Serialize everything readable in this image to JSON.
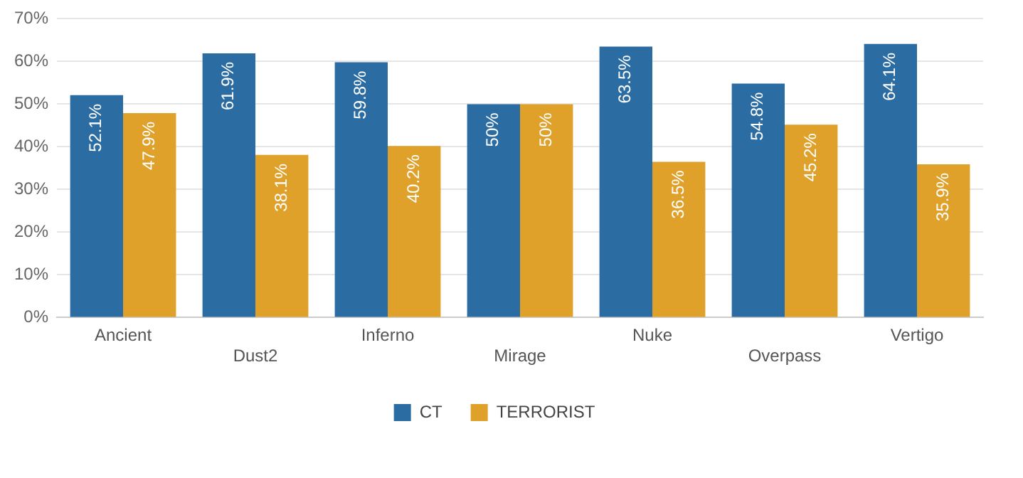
{
  "chart_data": {
    "type": "bar",
    "categories": [
      "Ancient",
      "Dust2",
      "Inferno",
      "Mirage",
      "Nuke",
      "Overpass",
      "Vertigo"
    ],
    "series": [
      {
        "name": "CT",
        "color": "#2b6ca3",
        "values": [
          52.1,
          61.9,
          59.8,
          50,
          63.5,
          54.8,
          64.1
        ],
        "value_labels": [
          "52.1%",
          "61.9%",
          "59.8%",
          "50%",
          "63.5%",
          "54.8%",
          "64.1%"
        ]
      },
      {
        "name": "TERRORIST",
        "color": "#e0a12b",
        "values": [
          47.9,
          38.1,
          40.2,
          50,
          36.5,
          45.2,
          35.9
        ],
        "value_labels": [
          "47.9%",
          "38.1%",
          "40.2%",
          "50%",
          "36.5%",
          "45.2%",
          "35.9%"
        ]
      }
    ],
    "ylim": [
      0,
      70
    ],
    "yticks": [
      {
        "value": 0,
        "label": "0%"
      },
      {
        "value": 10,
        "label": "10%"
      },
      {
        "value": 20,
        "label": "20%"
      },
      {
        "value": 30,
        "label": "30%"
      },
      {
        "value": 40,
        "label": "40%"
      },
      {
        "value": 50,
        "label": "50%"
      },
      {
        "value": 60,
        "label": "60%"
      },
      {
        "value": 70,
        "label": "70%"
      }
    ],
    "grid": "y",
    "legend": "bottom"
  }
}
